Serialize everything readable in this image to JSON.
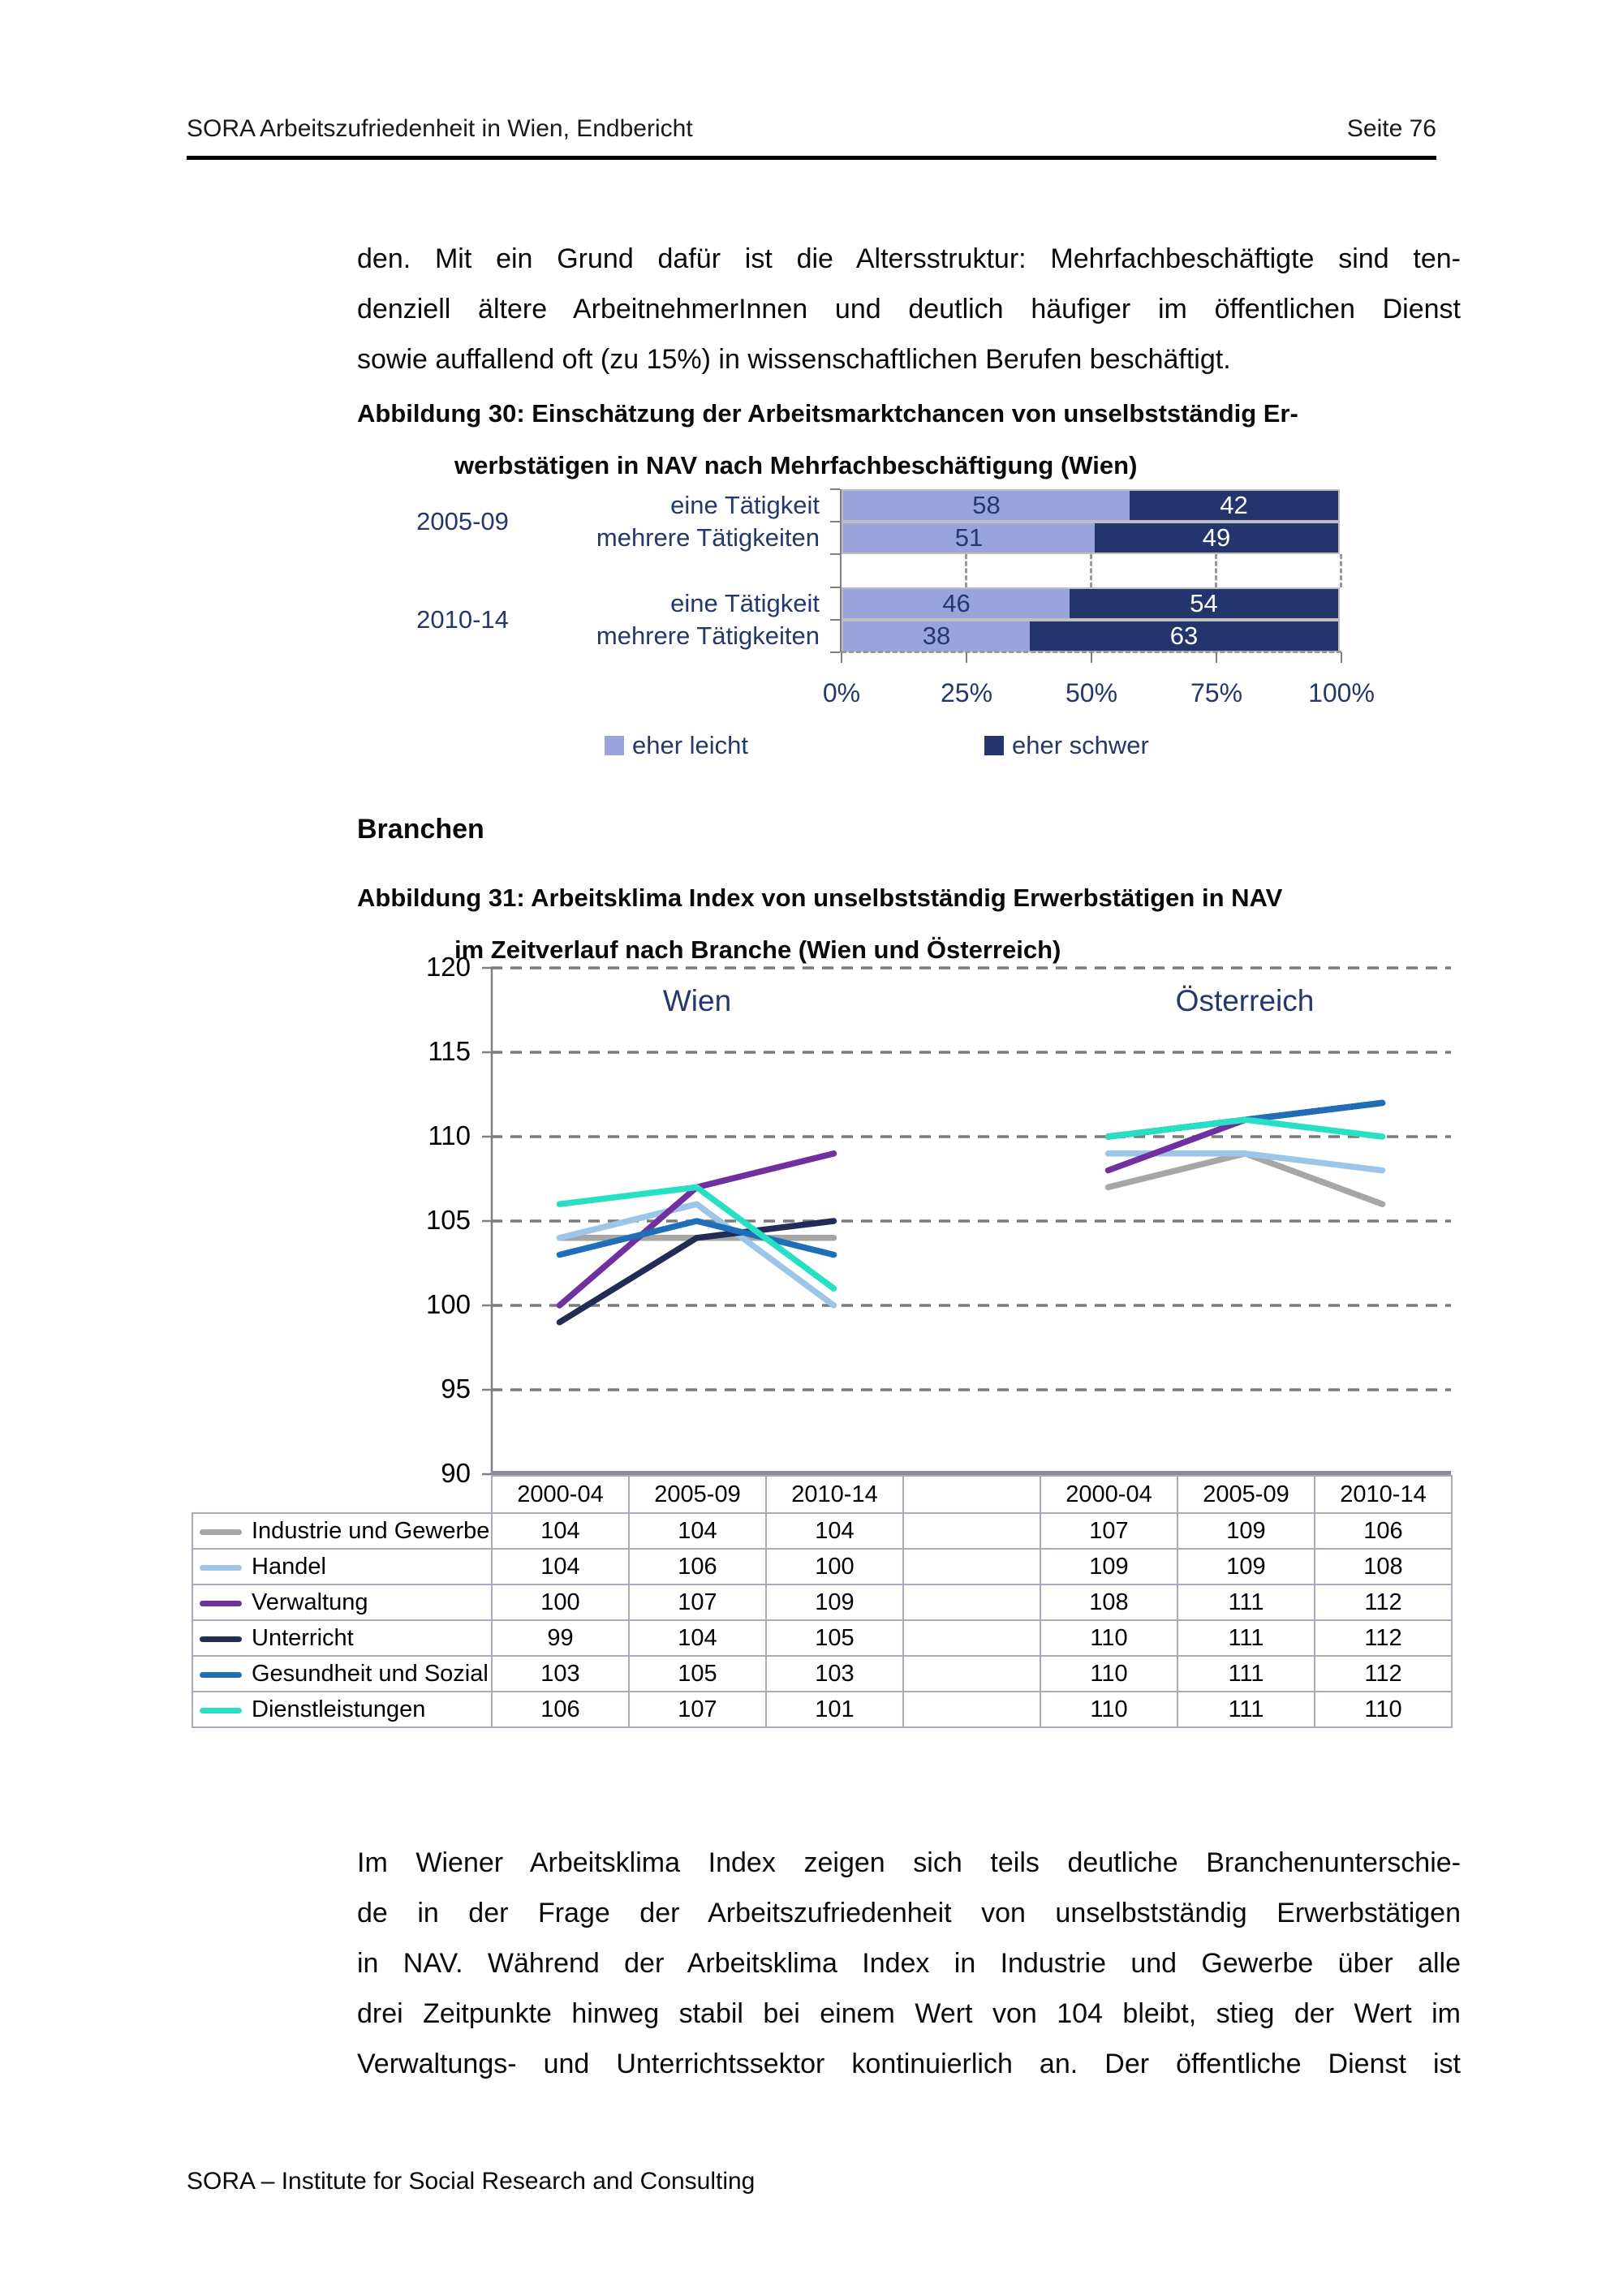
{
  "header": {
    "left": "SORA Arbeitszufriedenheit in Wien, Endbericht",
    "right": "Seite 76"
  },
  "paragraph1": {
    "lines": [
      "den. Mit ein Grund dafür ist die Altersstruktur: Mehrfachbeschäftigte sind ten-",
      "denziell ältere ArbeitnehmerInnen und deutlich häufiger im öffentlichen Dienst",
      "sowie auffallend oft (zu 15%) in wissenschaftlichen Berufen beschäftigt."
    ]
  },
  "figure30": {
    "caption_line1": "Abbildung 30: Einschätzung der Arbeitsmarktchancen von unselbstständig Er-",
    "caption_line2": "werbstätigen in NAV nach Mehrfachbeschäftigung (Wien)"
  },
  "branchen_heading": "Branchen",
  "figure31": {
    "caption_line1": "Abbildung 31: Arbeitsklima Index von unselbstständig Erwerbstätigen in NAV",
    "caption_line2": "im Zeitverlauf nach Branche (Wien und Österreich)"
  },
  "chart_data": [
    {
      "type": "bar",
      "orientation": "horizontal-stacked",
      "title": "Einschätzung der Arbeitsmarktchancen von unselbstständig Erwerbstätigen in NAV nach Mehrfachbeschäftigung (Wien)",
      "groups": [
        "2005-09",
        "2010-14"
      ],
      "rows": [
        {
          "group": "2005-09",
          "category": "eine Tätigkeit",
          "leicht": 58,
          "schwer": 42
        },
        {
          "group": "2005-09",
          "category": "mehrere Tätigkeiten",
          "leicht": 51,
          "schwer": 49
        },
        {
          "group": "2010-14",
          "category": "eine Tätigkeit",
          "leicht": 46,
          "schwer": 54
        },
        {
          "group": "2010-14",
          "category": "mehrere Tätigkeiten",
          "leicht": 38,
          "schwer": 63
        }
      ],
      "xticks": [
        "0%",
        "25%",
        "50%",
        "75%",
        "100%"
      ],
      "xlim": [
        0,
        100
      ],
      "legend": [
        {
          "label": "eher leicht",
          "color": "#98A4DB"
        },
        {
          "label": "eher schwer",
          "color": "#24356E"
        }
      ]
    },
    {
      "type": "line",
      "title": "Arbeitsklima Index von unselbstständig Erwerbstätigen in NAV im Zeitverlauf nach Branche (Wien und Österreich)",
      "panel_titles": [
        "Wien",
        "Österreich"
      ],
      "x_categories": [
        "2000-04",
        "2005-09",
        "2010-14"
      ],
      "ylim": [
        90,
        120
      ],
      "yticks": [
        120,
        115,
        110,
        105,
        100,
        95,
        90
      ],
      "grid": "dashed-horizontal",
      "legend_position": "table-left",
      "series": [
        {
          "name": "Industrie und Gewerbe",
          "color": "#A6A6A6",
          "wien": [
            104,
            104,
            104
          ],
          "oesterreich": [
            107,
            109,
            106
          ]
        },
        {
          "name": "Handel",
          "color": "#9DC5E8",
          "wien": [
            104,
            106,
            100
          ],
          "oesterreich": [
            109,
            109,
            108
          ]
        },
        {
          "name": "Verwaltung",
          "color": "#7030A0",
          "wien": [
            100,
            107,
            109
          ],
          "oesterreich": [
            108,
            111,
            112
          ]
        },
        {
          "name": "Unterricht",
          "color": "#232C54",
          "wien": [
            99,
            104,
            105
          ],
          "oesterreich": [
            110,
            111,
            112
          ]
        },
        {
          "name": "Gesundheit und Sozial",
          "color": "#1F6EB8",
          "wien": [
            103,
            105,
            103
          ],
          "oesterreich": [
            110,
            111,
            112
          ]
        },
        {
          "name": "Dienstleistungen",
          "color": "#27DFC3",
          "wien": [
            106,
            107,
            101
          ],
          "oesterreich": [
            110,
            111,
            110
          ]
        }
      ]
    }
  ],
  "paragraph2": {
    "lines": [
      "Im Wiener Arbeitsklima Index zeigen sich teils deutliche Branchenunterschie-",
      "de in der Frage der Arbeitszufriedenheit von unselbstständig Erwerbstätigen",
      "in NAV. Während der Arbeitsklima Index in Industrie und Gewerbe über alle",
      "drei Zeitpunkte hinweg stabil bei einem Wert von 104 bleibt, stieg der Wert im",
      "Verwaltungs- und Unterrichtssektor kontinuierlich an. Der öffentliche Dienst ist"
    ]
  },
  "footer": "SORA – Institute for Social Research and Consulting"
}
